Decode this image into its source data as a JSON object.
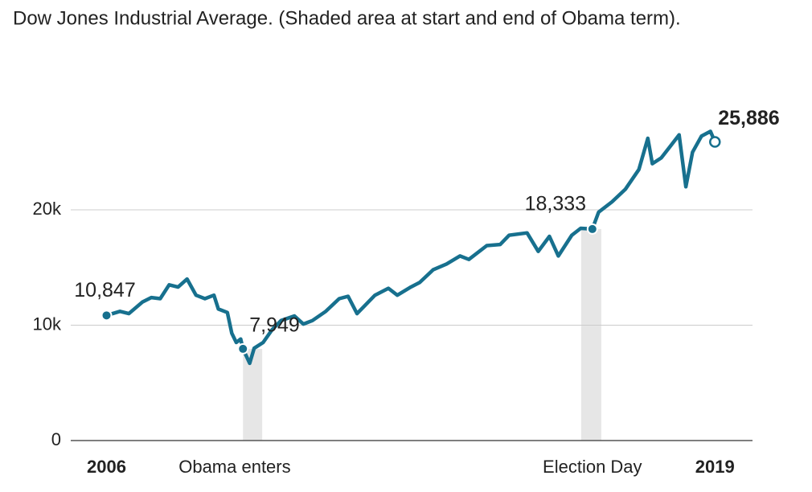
{
  "chart_data": {
    "type": "line",
    "title": "Dow Jones Industrial Average. (Shaded area at start and end of Obama term).",
    "color": "#17708e",
    "x": [
      2006.0,
      2006.3,
      2006.5,
      2006.8,
      2007.0,
      2007.2,
      2007.4,
      2007.6,
      2007.8,
      2008.0,
      2008.2,
      2008.4,
      2008.5,
      2008.7,
      2008.8,
      2008.9,
      2009.0,
      2009.05,
      2009.2,
      2009.3,
      2009.5,
      2009.7,
      2009.9,
      2010.2,
      2010.4,
      2010.6,
      2010.9,
      2011.2,
      2011.4,
      2011.6,
      2011.8,
      2012.0,
      2012.3,
      2012.5,
      2012.8,
      2013.0,
      2013.3,
      2013.6,
      2013.9,
      2014.1,
      2014.5,
      2014.8,
      2015.0,
      2015.4,
      2015.65,
      2015.9,
      2016.1,
      2016.4,
      2016.6,
      2016.86,
      2017.0,
      2017.3,
      2017.6,
      2017.9,
      2018.1,
      2018.2,
      2018.4,
      2018.6,
      2018.8,
      2018.95,
      2019.1,
      2019.3,
      2019.5,
      2019.6
    ],
    "values": [
      10847,
      11200,
      11000,
      12000,
      12400,
      12300,
      13500,
      13300,
      14000,
      12600,
      12300,
      12600,
      11400,
      11100,
      9300,
      8500,
      8800,
      7949,
      6700,
      8000,
      8500,
      9600,
      10400,
      10800,
      10100,
      10400,
      11200,
      12300,
      12500,
      11000,
      11800,
      12600,
      13200,
      12600,
      13300,
      13700,
      14800,
      15300,
      16000,
      15700,
      16900,
      17000,
      17800,
      18000,
      16400,
      17700,
      16000,
      17800,
      18400,
      18333,
      19800,
      20700,
      21800,
      23500,
      26200,
      24000,
      24500,
      25500,
      26500,
      22000,
      25000,
      26400,
      26800,
      25886
    ],
    "xlim": [
      2005.2,
      2020.44
    ],
    "xticks": [
      {
        "value": 2006,
        "label": "2006"
      },
      {
        "value": 2009.05,
        "label": "Obama enters"
      },
      {
        "value": 2016.86,
        "label": "Election Day"
      },
      {
        "value": 2019.6,
        "label": "2019"
      }
    ],
    "ylim": [
      0,
      30000
    ],
    "yticks": [
      {
        "value": 0,
        "label": "0"
      },
      {
        "value": 10000,
        "label": "10k"
      },
      {
        "value": 20000,
        "label": "20k"
      }
    ],
    "shaded": [
      [
        2009.05,
        2009.48
      ],
      [
        2016.61,
        2017.06
      ]
    ],
    "annotations": [
      {
        "x": 2006.0,
        "value": 10847,
        "label": "10,847"
      },
      {
        "x": 2009.05,
        "value": 7949,
        "label": "7,949"
      },
      {
        "x": 2016.86,
        "value": 18333,
        "label": "18,333"
      },
      {
        "x": 2019.6,
        "value": 25886,
        "label": "25,886"
      }
    ],
    "grid": true
  }
}
